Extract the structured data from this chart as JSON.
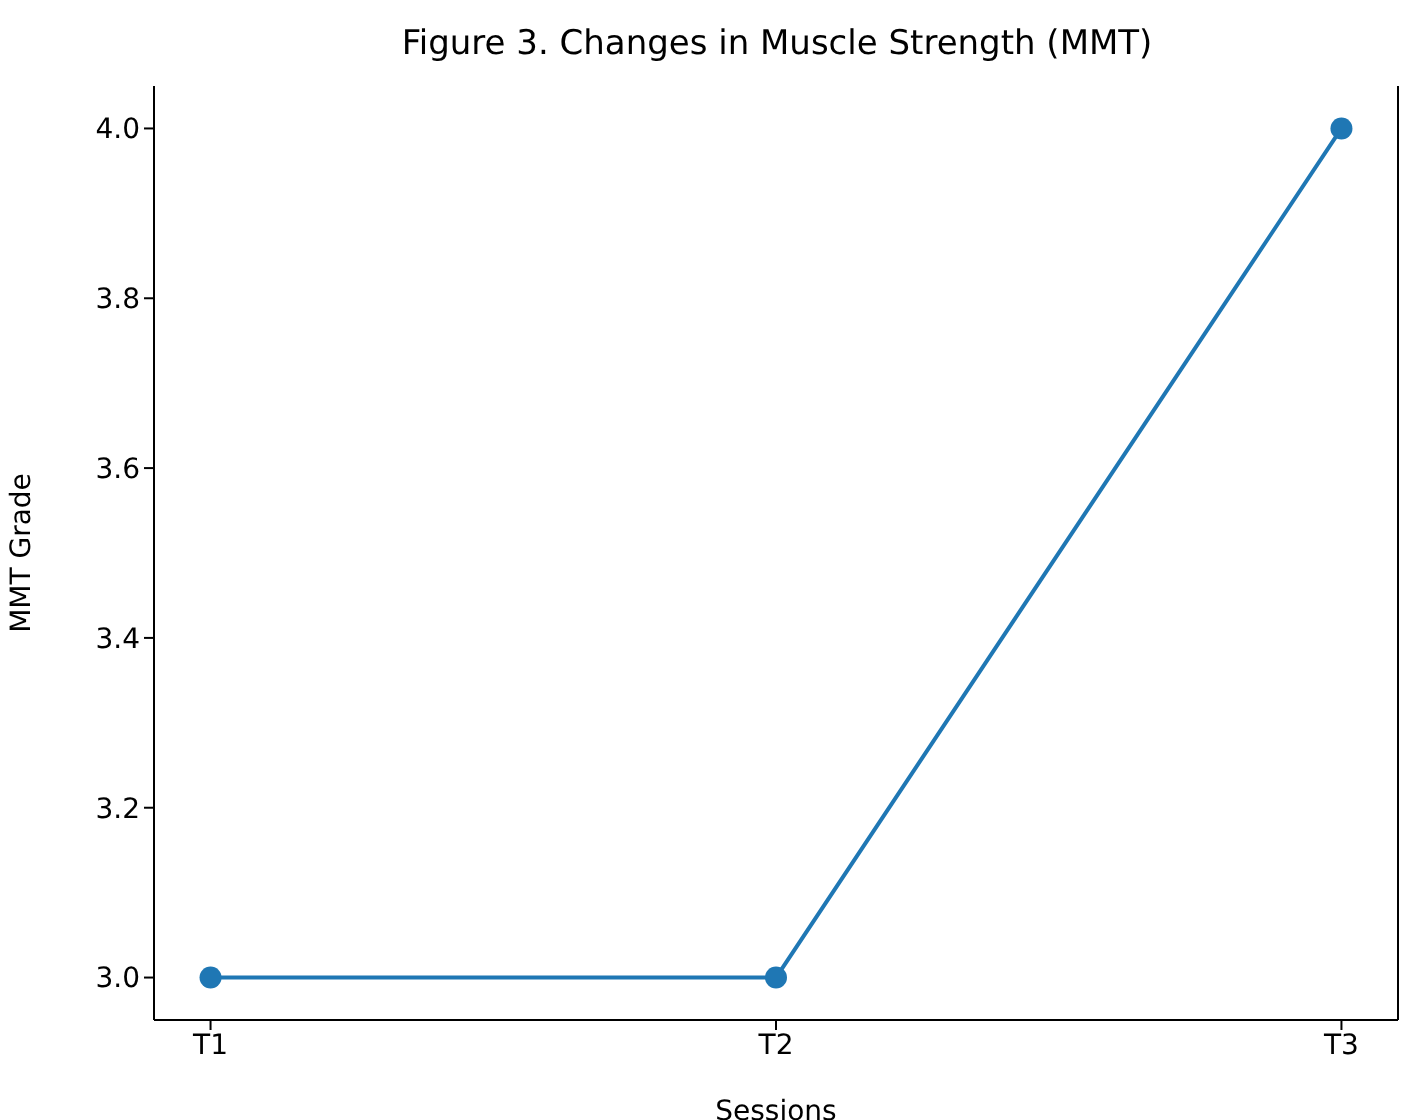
{
  "chart_data": {
    "type": "line",
    "title": "Figure 3. Changes in Muscle Strength (MMT)",
    "xlabel": "Sessions",
    "ylabel": "MMT Grade",
    "categories": [
      "T1",
      "T2",
      "T3"
    ],
    "series": [
      {
        "color": "#1f77b4",
        "values": [
          3,
          3,
          4
        ]
      }
    ],
    "ylim": [
      2.95,
      4.05
    ],
    "yticks": [
      {
        "value": 3,
        "label": "3.0"
      },
      {
        "value": 3.2,
        "label": "3.2"
      },
      {
        "value": 3.4,
        "label": "3.4"
      },
      {
        "value": 3.6,
        "label": "3.6"
      },
      {
        "value": 3.8,
        "label": "3.8"
      },
      {
        "value": 4,
        "label": "4.0"
      }
    ],
    "grid": false,
    "legend": false,
    "marker": "circle",
    "line_style": "solid"
  }
}
